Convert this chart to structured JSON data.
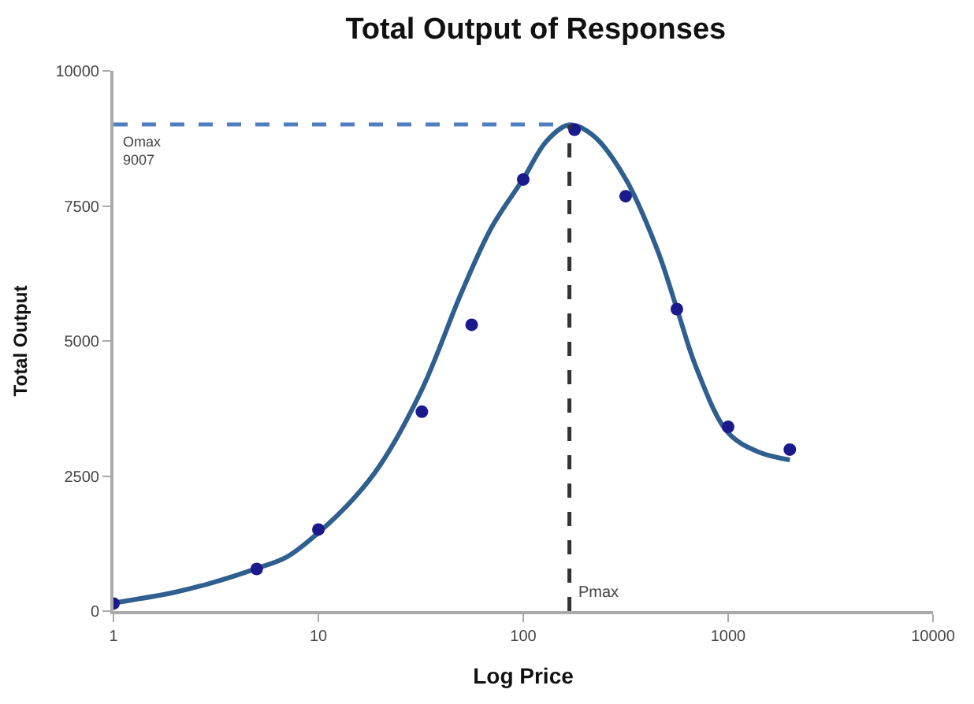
{
  "chart_data": {
    "type": "scatter",
    "title": "Total Output of Responses",
    "xlabel": "Log Price",
    "ylabel": "Total Output",
    "log": "x",
    "xlim": [
      1,
      10000
    ],
    "xticks": [
      1,
      10,
      100,
      1000,
      10000
    ],
    "ylim": [
      0,
      10000
    ],
    "yticks": [
      0,
      2500,
      5000,
      7500,
      10000
    ],
    "grid": false,
    "legend": false,
    "series": [
      {
        "type": "line",
        "color": "#2f5f8f",
        "marker": "none",
        "line_style": "solid",
        "x": [
          1,
          2,
          3,
          5,
          7,
          10,
          15,
          20,
          32,
          50,
          70,
          100,
          130,
          168,
          220,
          316,
          450,
          562,
          700,
          1000,
          1400,
          2000
        ],
        "values": [
          150,
          350,
          520,
          790,
          1000,
          1450,
          2100,
          2700,
          4100,
          5900,
          7100,
          8000,
          8700,
          9000,
          8800,
          8000,
          6700,
          5600,
          4500,
          3300,
          2950,
          2800
        ]
      },
      {
        "color": "#1a1a8c",
        "marker": "circle",
        "x": [
          1,
          5,
          10,
          32,
          56,
          100,
          178,
          316,
          562,
          1000,
          2000
        ],
        "values": [
          140,
          780,
          1510,
          3690,
          5300,
          7990,
          8910,
          7680,
          5590,
          3410,
          2990
        ]
      }
    ],
    "ref_lines": [
      {
        "axis": "y",
        "value": 9007,
        "label": "Omax\n9007",
        "color": "#4f7fc0",
        "line_style": "dashed"
      },
      {
        "axis": "x",
        "value": 168,
        "label": "Pmax",
        "color": "#333333",
        "line_style": "dashed"
      }
    ]
  }
}
